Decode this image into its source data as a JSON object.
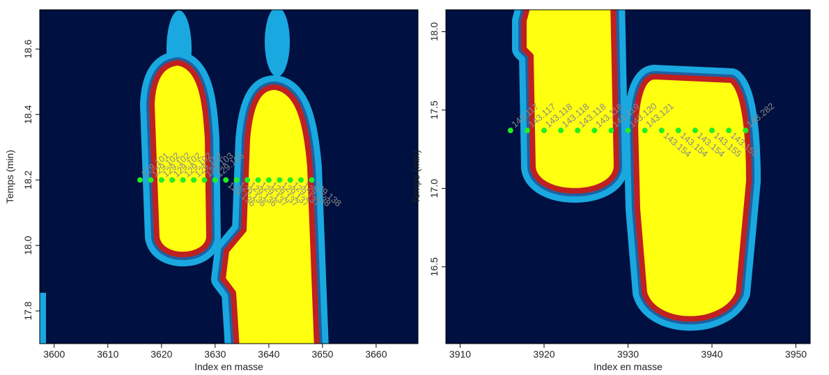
{
  "chart_data": [
    {
      "type": "scatter",
      "xlabel": "Index en masse",
      "ylabel": "Temps (min)",
      "xlim": [
        3597.3,
        3667.8
      ],
      "ylim": [
        17.7,
        18.72
      ],
      "xticks": [
        3600,
        3610,
        3620,
        3630,
        3640,
        3650,
        3660
      ],
      "yticks": [
        17.8,
        {
          "value": 18,
          "label": "18.0"
        },
        18.2,
        18.4,
        18.6
      ],
      "color": "#22ee22",
      "series": [
        {
          "x": [
            3616,
            3618,
            3620,
            3622,
            3624,
            3626,
            3628,
            3630
          ],
          "values": [
            18.2,
            18.2,
            18.2,
            18.2,
            18.2,
            18.2,
            18.2,
            18.2
          ],
          "labels": [
            "129.101",
            "129.102",
            "129.102",
            "129.102",
            "129.102",
            "129.102",
            "129.103",
            "129.103"
          ]
        },
        {
          "x": [
            3632,
            3634,
            3636,
            3638,
            3640,
            3642,
            3644,
            3646,
            3648
          ],
          "values": [
            18.2,
            18.2,
            18.2,
            18.2,
            18.2,
            18.2,
            18.2,
            18.2,
            18.2
          ],
          "labels": [
            "129.136",
            "129.136",
            "129.136",
            "129.137",
            "129.137",
            "129.137",
            "129.137",
            "129.138",
            "129.138"
          ]
        }
      ]
    },
    {
      "type": "scatter",
      "xlabel": "Index en masse",
      "ylabel": "Temps (min)",
      "xlim": [
        3908.3,
        3951.7
      ],
      "ylim": [
        16.01,
        18.14
      ],
      "xticks": [
        3910,
        3920,
        3930,
        3940,
        3950
      ],
      "yticks": [
        16.5,
        {
          "value": 17,
          "label": "17.0"
        },
        17.5,
        {
          "value": 18,
          "label": "18.0"
        }
      ],
      "color": "#22ee22",
      "series": [
        {
          "x": [
            3916,
            3918,
            3920,
            3922,
            3924,
            3926,
            3928,
            3930,
            3932,
            3944
          ],
          "values": [
            17.37,
            17.37,
            17.37,
            17.37,
            17.37,
            17.37,
            17.37,
            17.37,
            17.37,
            17.37
          ],
          "labels": [
            "143.117",
            "143.117",
            "143.118",
            "143.118",
            "143.118",
            "143.118",
            "143.119",
            "143.120",
            "143.121",
            "143.282"
          ]
        },
        {
          "x": [
            3934,
            3936,
            3938,
            3940,
            3942
          ],
          "values": [
            17.37,
            17.37,
            17.37,
            17.37,
            17.37
          ],
          "labels": [
            "143.154",
            "143.154",
            "143.154",
            "143.155",
            "143.155"
          ]
        }
      ]
    }
  ]
}
